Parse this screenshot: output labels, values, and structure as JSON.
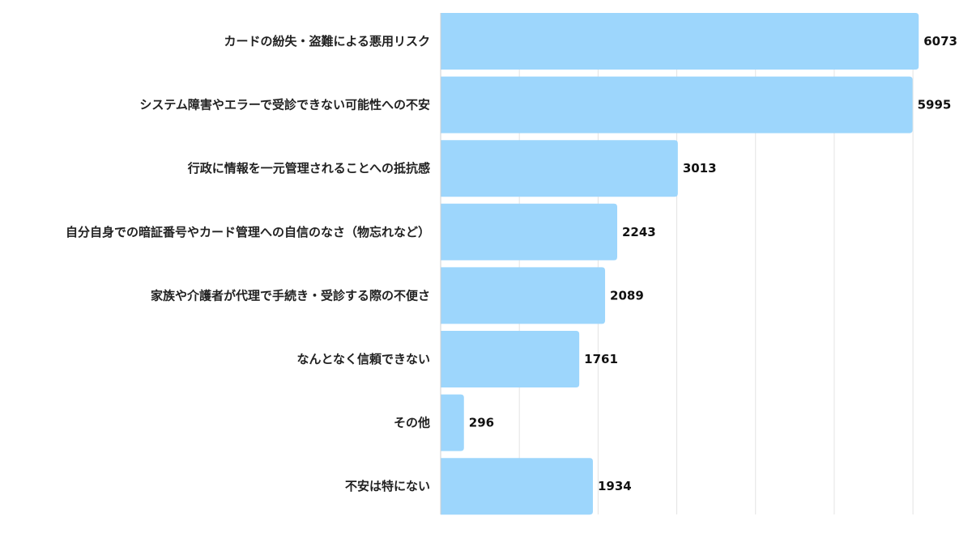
{
  "chart_data": {
    "type": "bar",
    "orientation": "horizontal",
    "title": "",
    "xlabel": "",
    "ylabel": "",
    "categories": [
      "カードの紛失・盗難による悪用リスク",
      "システム障害やエラーで受診できない可能性への不安",
      "行政に情報を一元管理されることへの抵抗感",
      "自分自身での暗証番号やカード管理への自信のなさ（物忘れなど）",
      "家族や介護者が代理で手続き・受診する際の不便さ",
      "なんとなく信頼できない",
      "その他",
      "不安は特にない"
    ],
    "values": [
      6073,
      5995,
      3013,
      2243,
      2089,
      1761,
      296,
      1934
    ],
    "value_labels": [
      "6073",
      "5995",
      "3013",
      "2243",
      "2089",
      "1761",
      "296",
      "1934"
    ],
    "xlim": [
      0,
      6750
    ],
    "grid_step": 1000,
    "grid": true,
    "tick_labels_shown": false,
    "legend": "none",
    "colors": {
      "bar": "#9dd6fc",
      "grid": "#e3e3e3",
      "axis": "#cfcfcf"
    }
  }
}
